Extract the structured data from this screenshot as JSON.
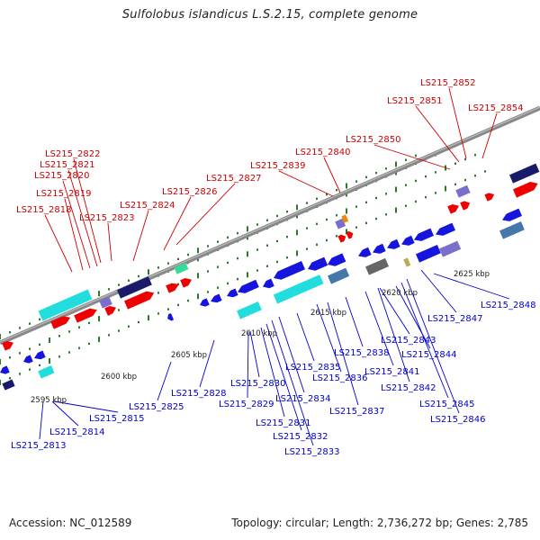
{
  "title": "Sulfolobus islandicus L.S.2.15, complete genome",
  "footer": {
    "accession": "Accession: NC_012589",
    "summary": "Topology: circular; Length: 2,736,272 bp; Genes: 2,785"
  },
  "colors": {
    "forward_label": "#cc0000",
    "reverse_label": "#0000cc",
    "backbone": "#888888",
    "tick": "#2a7a2a",
    "gene_red": "#ee0000",
    "gene_blue": "#1515dd",
    "gene_cyan": "#22dddd",
    "gene_navy": "#1a1a6a",
    "gene_slate": "#7a70cc",
    "gene_gray": "#666666",
    "gene_mint": "#33dd99",
    "gene_steel": "#4477aa",
    "gene_orange": "#ee8800",
    "gene_khaki": "#bbaa55"
  },
  "scale_labels": [
    "2595 kbp",
    "2600 kbp",
    "2605 kbp",
    "2610 kbp",
    "2615 kbp",
    "2620 kbp",
    "2625 kbp"
  ],
  "forward_genes": [
    "LS215_2818",
    "LS215_2819",
    "LS215_2820",
    "LS215_2821",
    "LS215_2822",
    "LS215_2823",
    "LS215_2824",
    "LS215_2826",
    "LS215_2827",
    "LS215_2839",
    "LS215_2840",
    "LS215_2850",
    "LS215_2851",
    "LS215_2852",
    "LS215_2854"
  ],
  "reverse_genes": [
    "LS215_2813",
    "LS215_2814",
    "LS215_2815",
    "LS215_2825",
    "LS215_2828",
    "LS215_2829",
    "LS215_2830",
    "LS215_2831",
    "LS215_2832",
    "LS215_2833",
    "LS215_2834",
    "LS215_2835",
    "LS215_2836",
    "LS215_2837",
    "LS215_2838",
    "LS215_2841",
    "LS215_2842",
    "LS215_2843",
    "LS215_2844",
    "LS215_2845",
    "LS215_2846",
    "LS215_2847",
    "LS215_2848"
  ]
}
